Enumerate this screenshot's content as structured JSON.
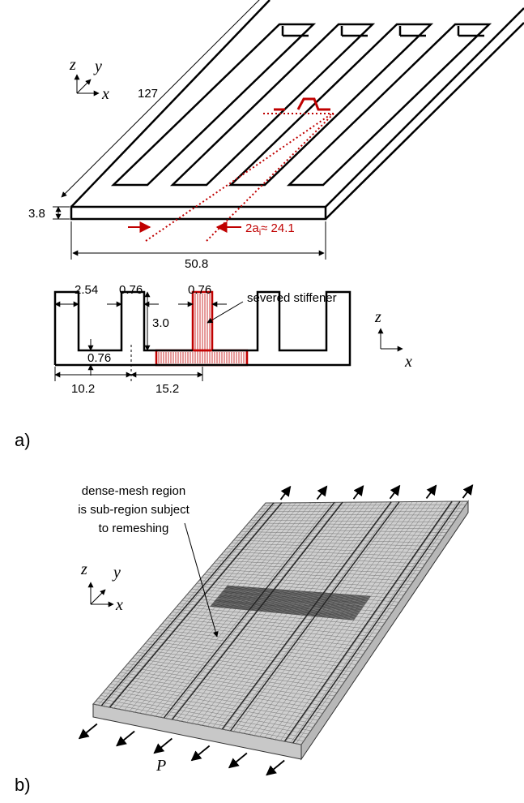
{
  "panel_a": {
    "label": "a)",
    "axes": {
      "z": "z",
      "y": "y",
      "x": "x"
    },
    "length": "127",
    "thickness": "3.8",
    "width": "50.8",
    "crack": {
      "prefix": "2a",
      "subscript": "i",
      "suffix": "≈ 24.1"
    }
  },
  "section": {
    "dims": [
      "2.54",
      "0.76",
      "0.76",
      "3.0",
      "0.76",
      "10.2",
      "15.2"
    ],
    "annotation": "severed stiffener",
    "axes": {
      "z": "z",
      "x": "x"
    }
  },
  "panel_b": {
    "label": "b)",
    "annotation": [
      "dense-mesh region",
      "is sub-region subject",
      "to remeshing"
    ],
    "axes": {
      "z": "z",
      "y": "y",
      "x": "x"
    },
    "load": "P"
  }
}
